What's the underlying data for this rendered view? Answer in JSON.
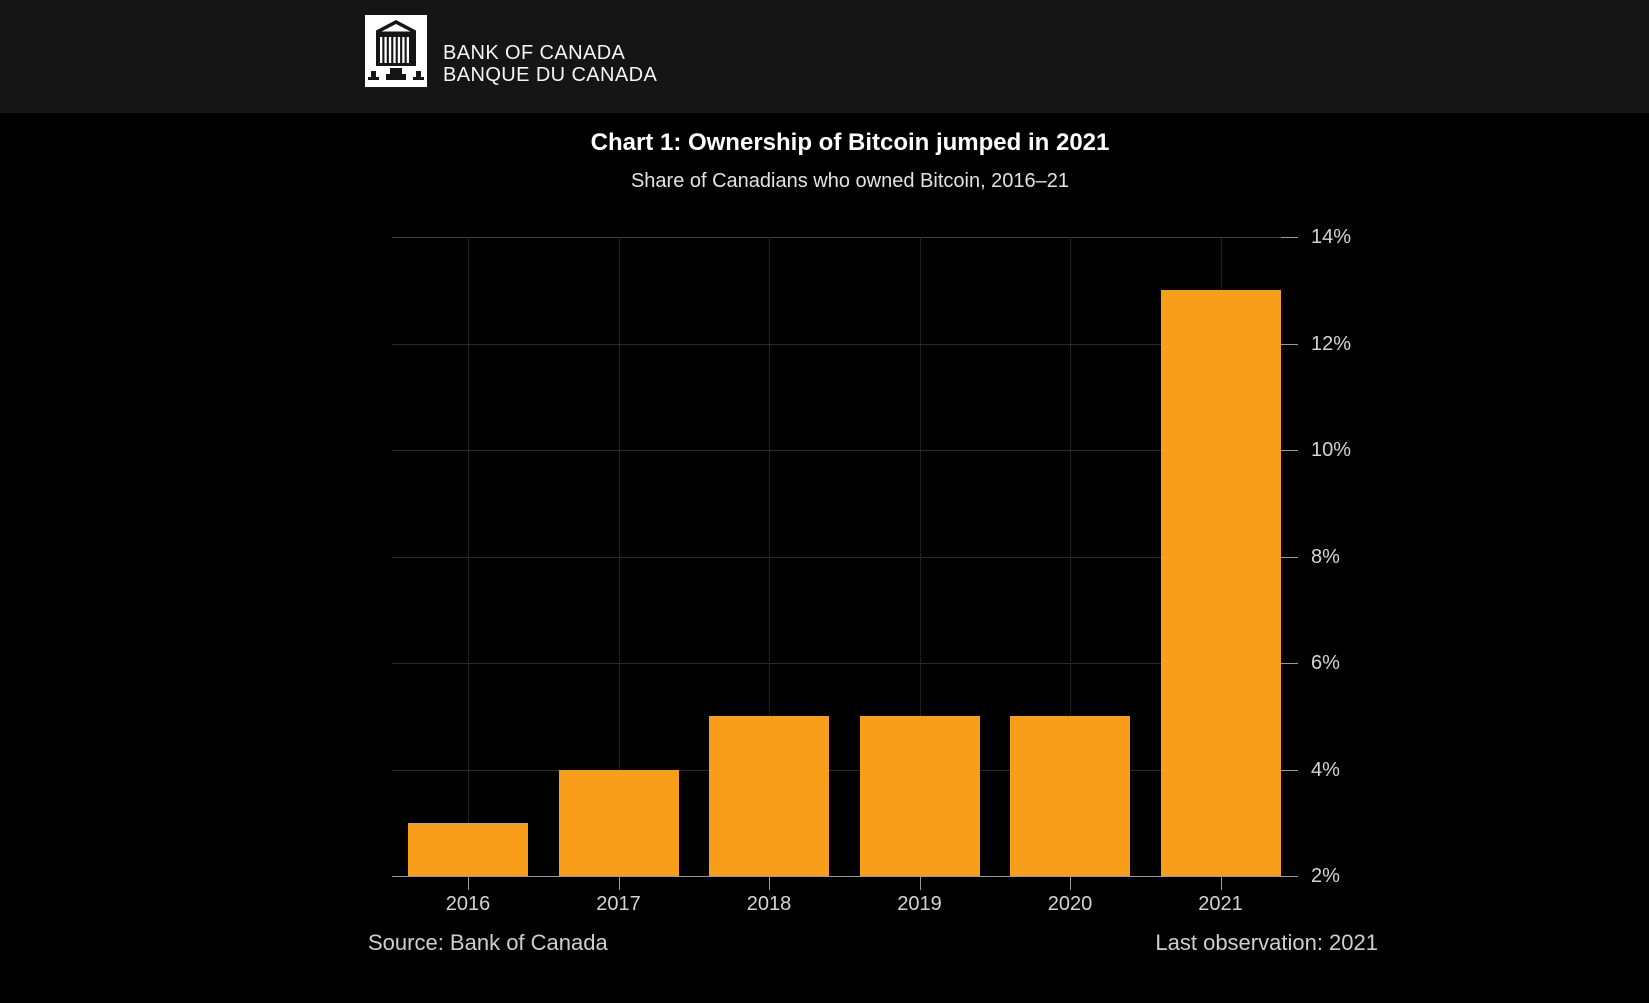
{
  "header": {
    "logo_icon": "bank-of-canada-building-icon",
    "brand_line1": "BANK OF CANADA",
    "brand_line2": "BANQUE DU CANADA"
  },
  "chart": {
    "title": "Chart 1: Ownership of Bitcoin jumped in 2021",
    "subtitle": "Share of Canadians who owned Bitcoin, 2016–21",
    "source": "Source: Bank of Canada",
    "last_observation": "Last observation: 2021"
  },
  "chart_data": {
    "type": "bar",
    "categories": [
      "2016",
      "2017",
      "2018",
      "2019",
      "2020",
      "2021"
    ],
    "values": [
      3,
      4,
      5,
      5,
      5,
      13
    ],
    "unit": "%",
    "title": "Chart 1: Ownership of Bitcoin jumped in 2021",
    "subtitle": "Share of Canadians who owned Bitcoin, 2016–21",
    "xlabel": "",
    "ylabel": "",
    "ylim": [
      2,
      14
    ],
    "y_ticks": [
      2,
      4,
      6,
      8,
      10,
      12,
      14
    ],
    "y_tick_labels": [
      "2%",
      "4%",
      "6%",
      "8%",
      "10%",
      "12%",
      "14%"
    ],
    "axis_side": "right",
    "grid": true,
    "legend": "none"
  },
  "colors": {
    "background": "#000000",
    "header_background": "#151515",
    "bar": "#F89E1B",
    "grid_line": "#2c2c2c",
    "axis_line": "#9a9a9a",
    "text_primary": "#ffffff",
    "text_secondary": "#d4d4d4"
  }
}
